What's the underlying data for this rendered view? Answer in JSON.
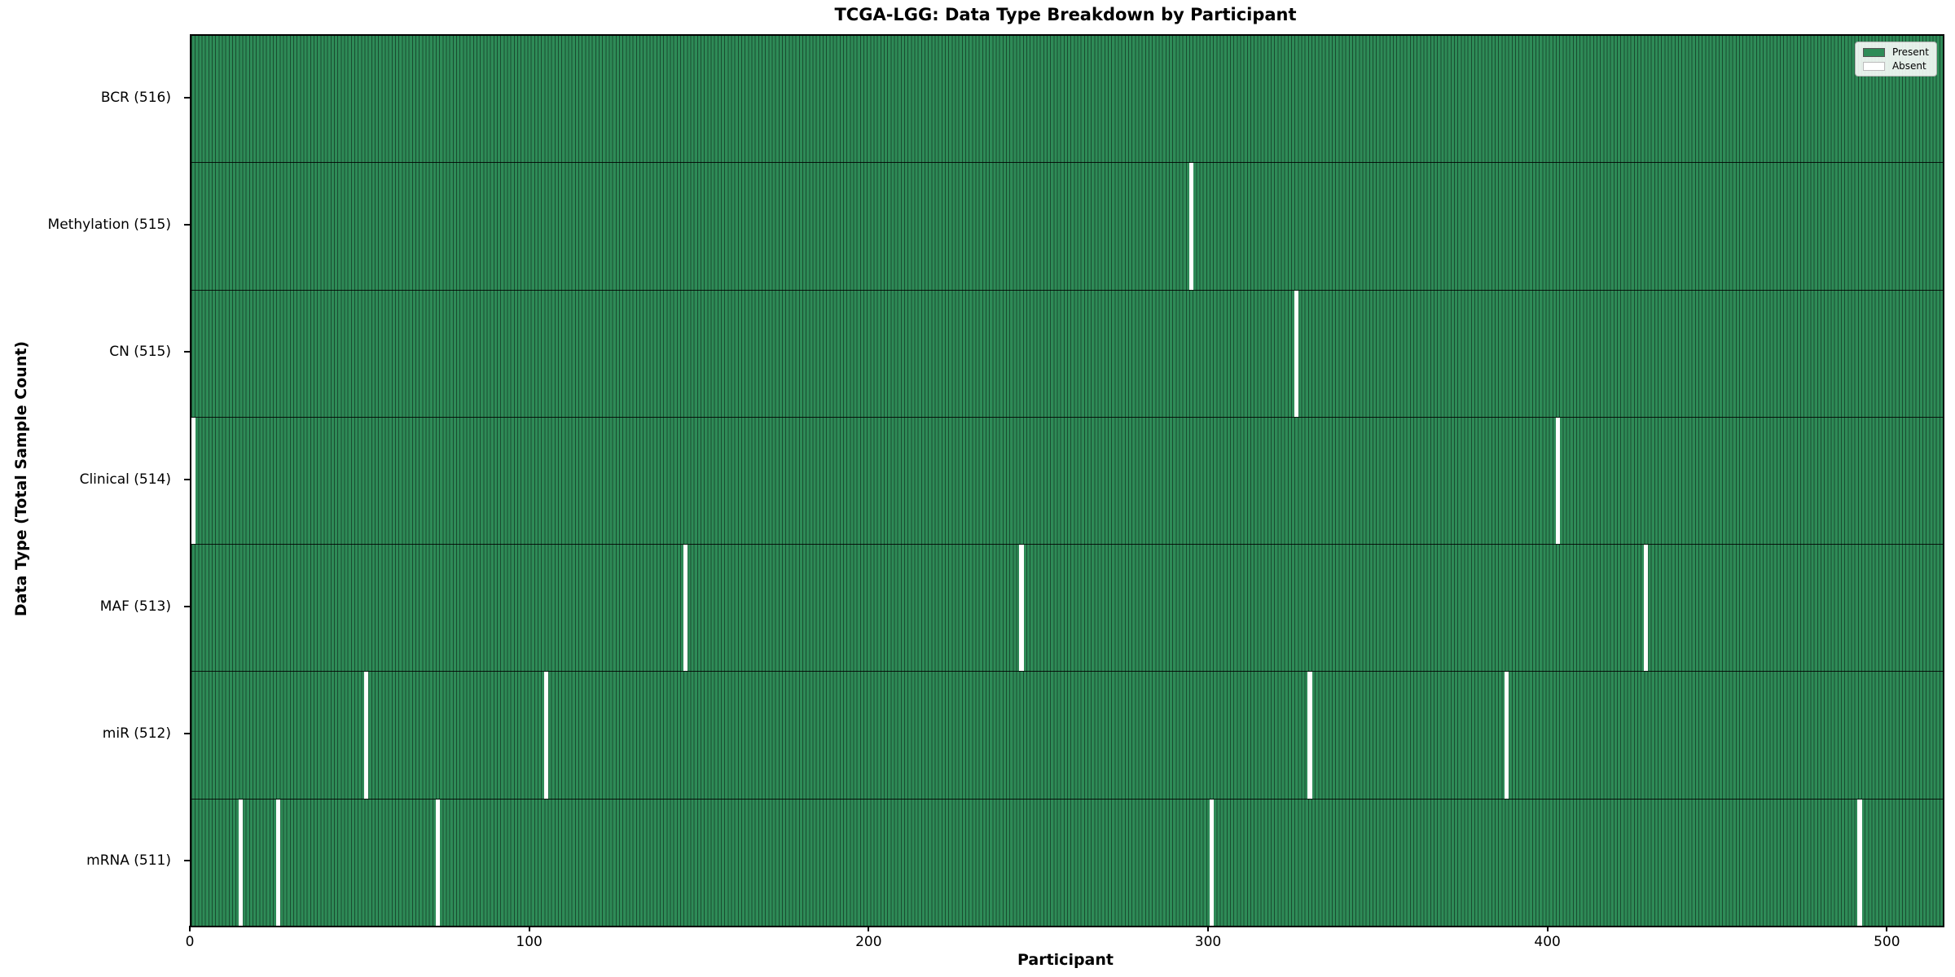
{
  "chart_data": {
    "type": "heatmap",
    "title": "TCGA-LGG: Data Type Breakdown by Participant",
    "xlabel": "Participant",
    "ylabel": "Data Type (Total Sample Count)",
    "x_ticks": [
      0,
      100,
      200,
      300,
      400,
      500
    ],
    "x_range": [
      0,
      516
    ],
    "total_participants": 516,
    "grid": false,
    "legend": {
      "position": "upper right",
      "entries": [
        {
          "label": "Present",
          "color": "#2e8b57"
        },
        {
          "label": "Absent",
          "color": "#ffffff"
        }
      ]
    },
    "colors": {
      "present": "#2e8b57",
      "absent": "#ffffff",
      "bar_edge": "rgba(0,0,0,0.45)",
      "row_separator": "rgba(0,0,0,0.85)"
    },
    "rows": [
      {
        "data_type": "BCR",
        "label": "BCR (516)",
        "count": 516,
        "absent_participants": []
      },
      {
        "data_type": "Methylation",
        "label": "Methylation (515)",
        "count": 515,
        "absent_participants": [
          294
        ]
      },
      {
        "data_type": "CN",
        "label": "CN (515)",
        "count": 515,
        "absent_participants": [
          325
        ]
      },
      {
        "data_type": "Clinical",
        "label": "Clinical (514)",
        "count": 514,
        "absent_participants": [
          0,
          402
        ]
      },
      {
        "data_type": "MAF",
        "label": "MAF (513)",
        "count": 513,
        "absent_participants": [
          145,
          244,
          428
        ]
      },
      {
        "data_type": "miR",
        "label": "miR (512)",
        "count": 512,
        "absent_participants": [
          51,
          104,
          329,
          387
        ]
      },
      {
        "data_type": "mRNA",
        "label": "mRNA (511)",
        "count": 511,
        "absent_participants": [
          14,
          25,
          72,
          300,
          491
        ]
      }
    ]
  }
}
